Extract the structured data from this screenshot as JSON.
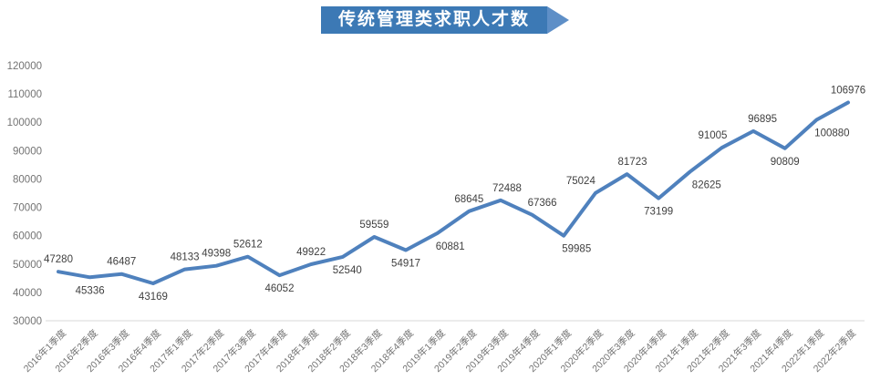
{
  "title": "传统管理类求职人才数",
  "chart_data": {
    "type": "line",
    "title": "传统管理类求职人才数",
    "categories": [
      "2016年1季度",
      "2016年2季度",
      "2016年3季度",
      "2016年4季度",
      "2017年1季度",
      "2017年2季度",
      "2017年3季度",
      "2017年4季度",
      "2018年1季度",
      "2018年2季度",
      "2018年3季度",
      "2018年4季度",
      "2019年1季度",
      "2019年2季度",
      "2019年3季度",
      "2019年4季度",
      "2020年1季度",
      "2020年2季度",
      "2020年3季度",
      "2020年4季度",
      "2021年1季度",
      "2021年2季度",
      "2021年3季度",
      "2021年4季度",
      "2022年1季度",
      "2022年2季度"
    ],
    "values": [
      47280,
      45336,
      46487,
      43169,
      48133,
      49398,
      52612,
      46052,
      49922,
      52540,
      59559,
      54917,
      60881,
      68645,
      72488,
      67366,
      59985,
      75024,
      81723,
      73199,
      82625,
      91005,
      96895,
      90809,
      100880,
      106976
    ],
    "data_labels_shown": true,
    "data_label_positions": [
      "above",
      "below",
      "above",
      "below",
      "above",
      "above",
      "above",
      "below",
      "above",
      "below",
      "above",
      "below",
      "below",
      "above",
      "above",
      "above",
      "below",
      "above",
      "above",
      "below",
      "below",
      "above",
      "above",
      "below",
      "below",
      "above"
    ],
    "xlabel": "",
    "ylabel": "",
    "ylim": [
      30000,
      120000
    ],
    "ytick_step": 10000,
    "yticks": [
      30000,
      40000,
      50000,
      60000,
      70000,
      80000,
      90000,
      100000,
      110000,
      120000
    ],
    "grid": "off",
    "legend": "none",
    "line_color": "#4F81BD",
    "data_label_color": "#3F3F3F",
    "axis_label_color": "#737373",
    "axis_line_color": "#D9D9D9"
  },
  "banner": {
    "fill": "#3C79B5",
    "tip_fill": "#5E8FC7",
    "text_color": "#FFFFFF"
  }
}
